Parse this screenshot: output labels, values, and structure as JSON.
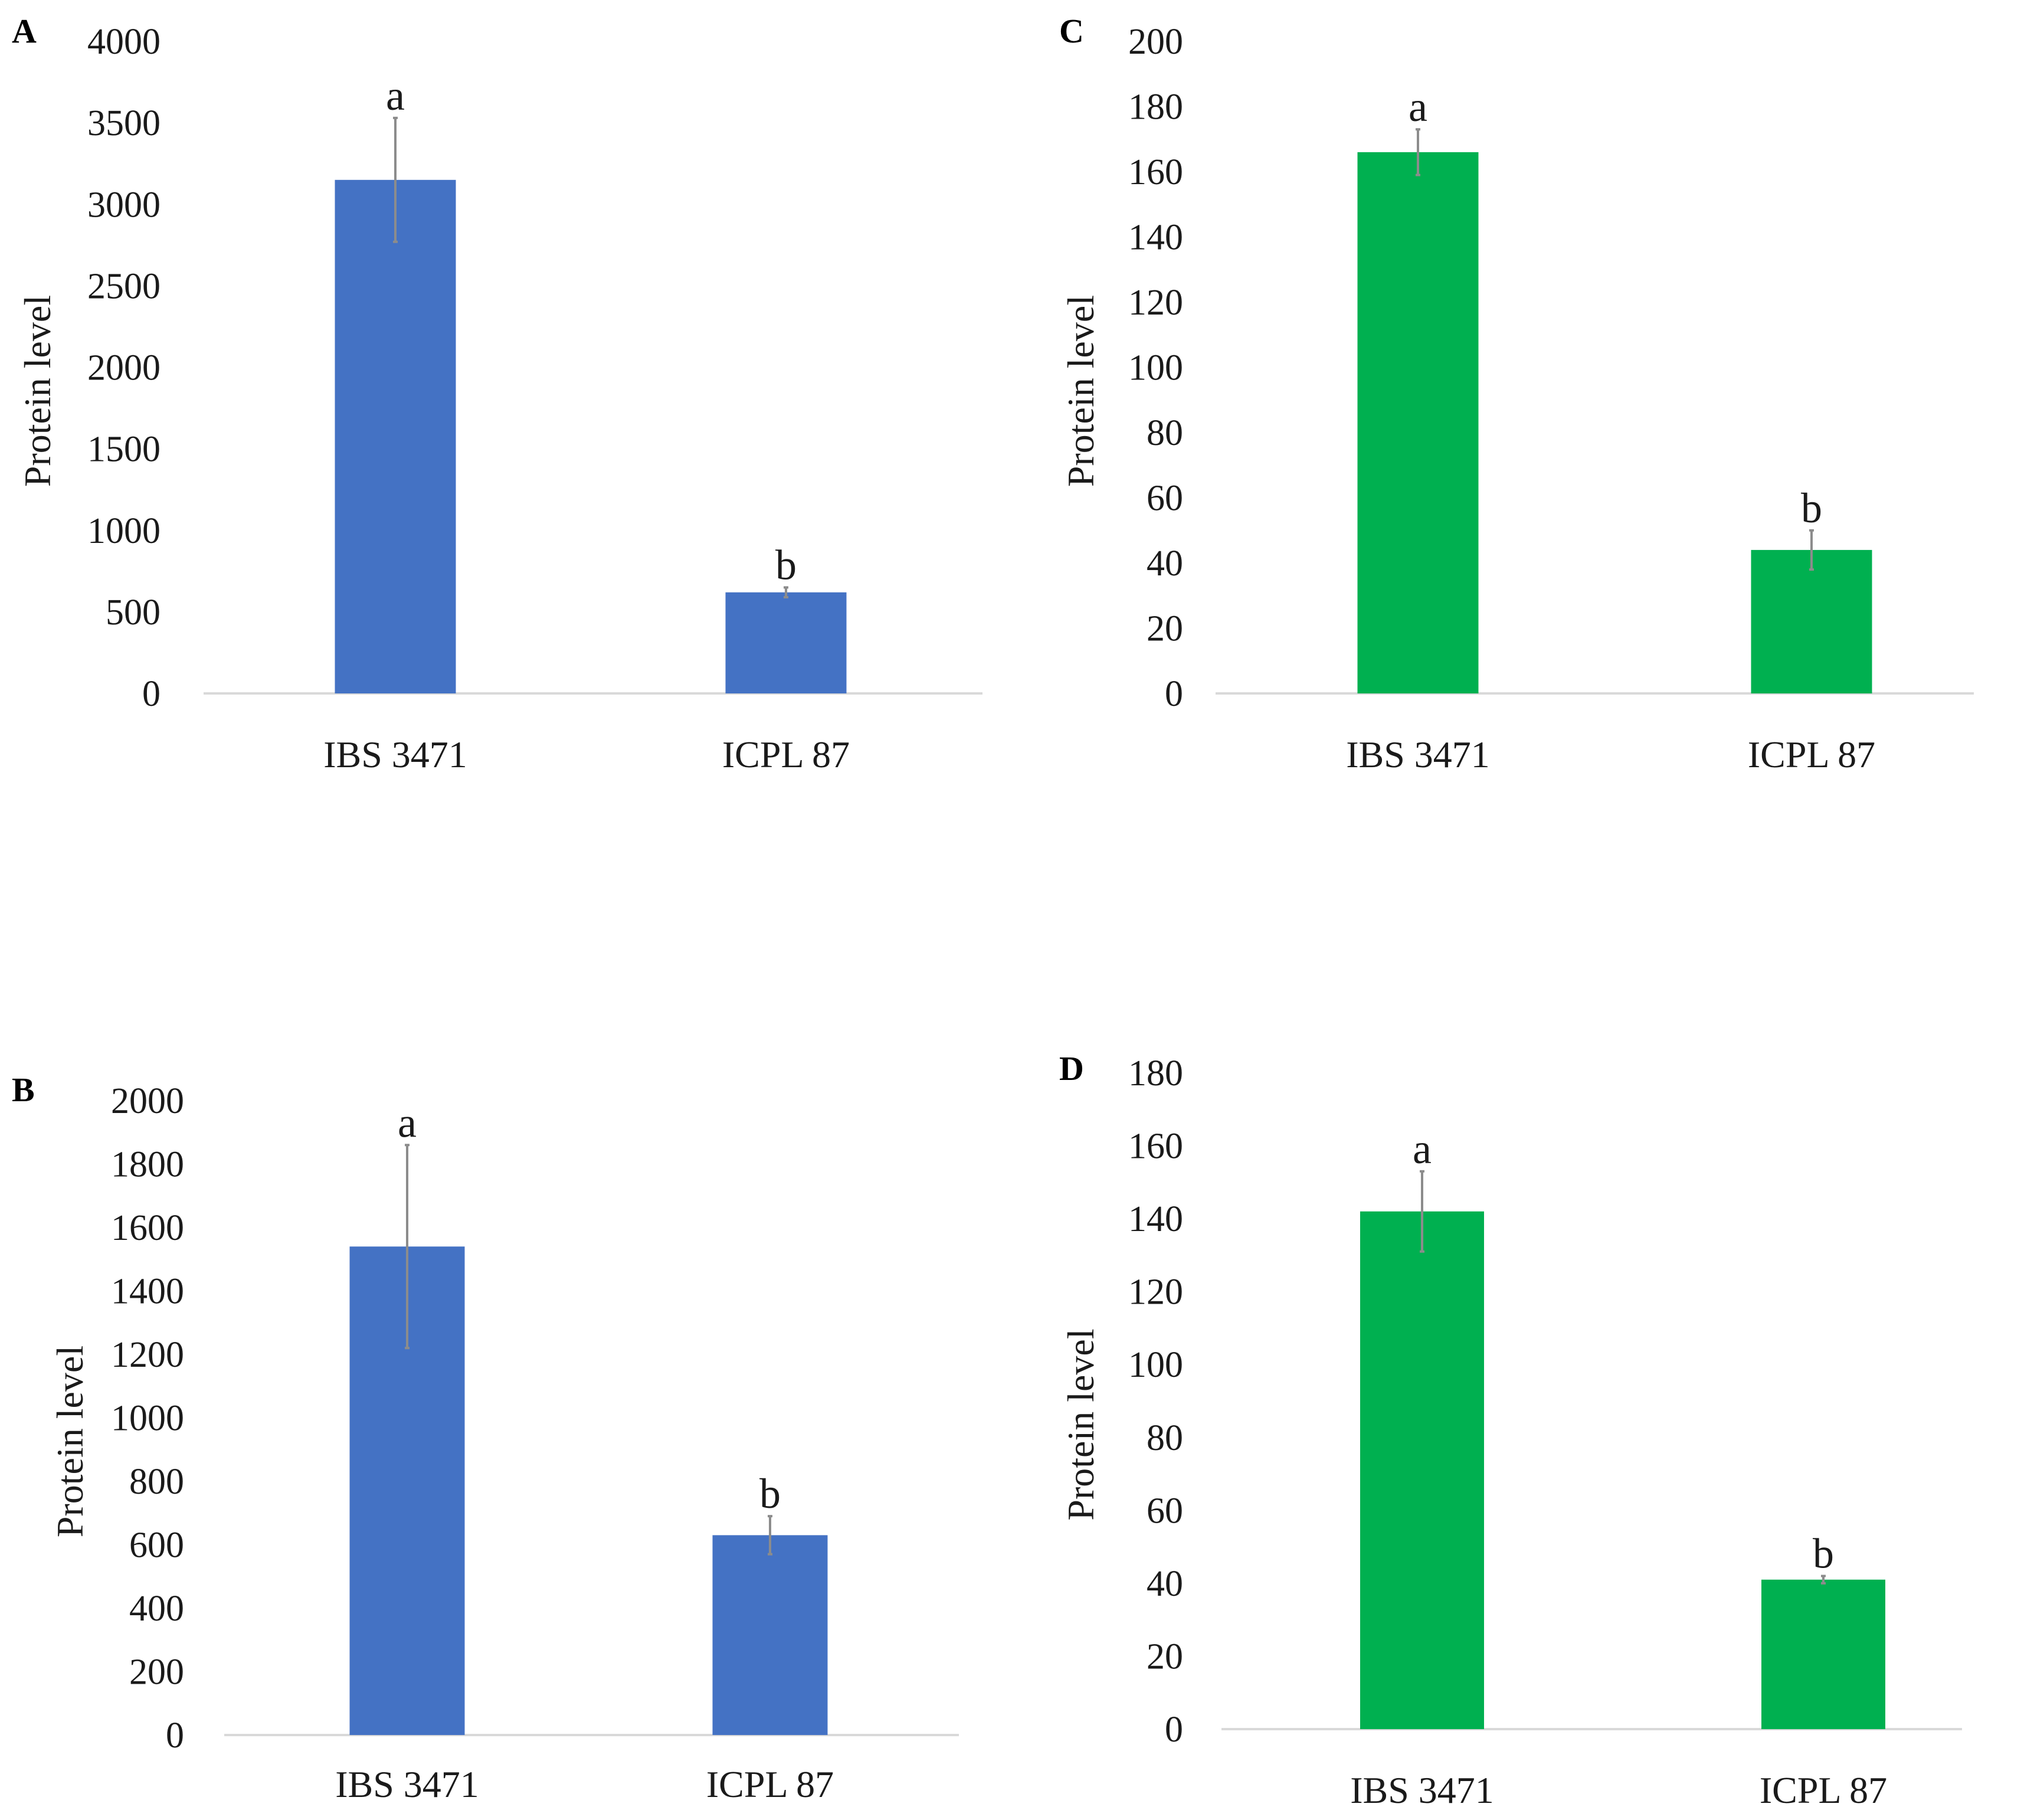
{
  "chart_data": [
    {
      "panel": "A",
      "type": "bar",
      "ylabel": "Protein level",
      "categories": [
        "IBS 3471",
        "ICPL 87"
      ],
      "values": [
        3150,
        620
      ],
      "errors": [
        380,
        30
      ],
      "significance": [
        "a",
        "b"
      ],
      "ylim": [
        0,
        4000
      ],
      "yticks": [
        0,
        500,
        1000,
        1500,
        2000,
        2500,
        3000,
        3500,
        4000
      ],
      "color": "#4472c4"
    },
    {
      "panel": "B",
      "type": "bar",
      "ylabel": "Protein level",
      "categories": [
        "IBS 3471",
        "ICPL 87"
      ],
      "values": [
        1540,
        630
      ],
      "errors": [
        320,
        60
      ],
      "significance": [
        "a",
        "b"
      ],
      "ylim": [
        0,
        2000
      ],
      "yticks": [
        0,
        200,
        400,
        600,
        800,
        1000,
        1200,
        1400,
        1600,
        1800,
        2000
      ],
      "color": "#4472c4"
    },
    {
      "panel": "C",
      "type": "bar",
      "ylabel": "Protein level",
      "categories": [
        "IBS 3471",
        "ICPL 87"
      ],
      "values": [
        166,
        44
      ],
      "errors": [
        7,
        6
      ],
      "significance": [
        "a",
        "b"
      ],
      "ylim": [
        0,
        200
      ],
      "yticks": [
        0,
        20,
        40,
        60,
        80,
        100,
        120,
        140,
        160,
        180,
        200
      ],
      "color": "#00b050"
    },
    {
      "panel": "D",
      "type": "bar",
      "ylabel": "Protein level",
      "categories": [
        "IBS 3471",
        "ICPL 87"
      ],
      "values": [
        142,
        41
      ],
      "errors": [
        11,
        1
      ],
      "significance": [
        "a",
        "b"
      ],
      "ylim": [
        0,
        180
      ],
      "yticks": [
        0,
        20,
        40,
        60,
        80,
        100,
        120,
        140,
        160,
        180
      ],
      "color": "#00b050"
    }
  ]
}
